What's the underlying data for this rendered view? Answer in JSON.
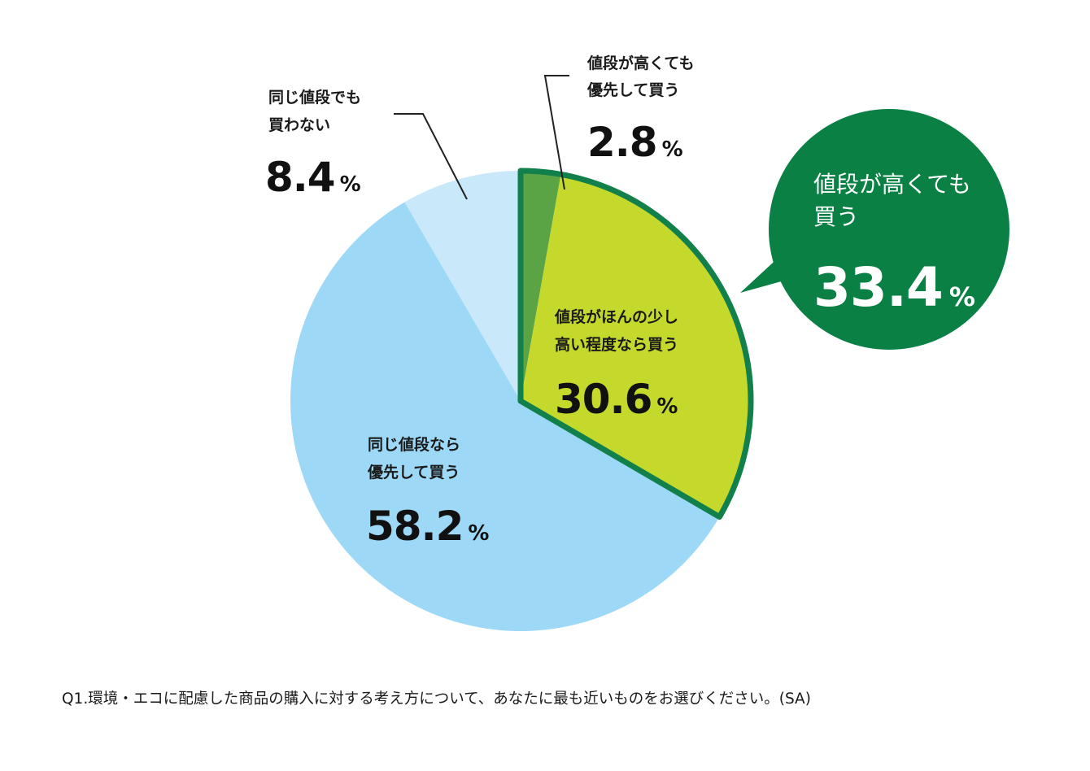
{
  "chart_data": {
    "type": "pie",
    "title": "",
    "question": "Q1.環境・エコに配慮した商品の購入に対する考え方について、あなたに最も近いものをお選びください。(SA)",
    "unit": "%",
    "slices": [
      {
        "label_lines": [
          "値段が高くても",
          "優先して買う"
        ],
        "value": 2.8,
        "value_text": "2.8",
        "color": "#5ba446"
      },
      {
        "label_lines": [
          "値段がほんの少し",
          "高い程度なら買う"
        ],
        "value": 30.6,
        "value_text": "30.6",
        "color": "#c5d92d"
      },
      {
        "label_lines": [
          "同じ値段なら",
          "優先して買う"
        ],
        "value": 58.2,
        "value_text": "58.2",
        "color": "#9dd8f6"
      },
      {
        "label_lines": [
          "同じ値段でも",
          "買わない"
        ],
        "value": 8.4,
        "value_text": "8.4",
        "color": "#c9e8f9"
      }
    ],
    "highlight": {
      "label_lines": [
        "値段が高くても",
        "買う"
      ],
      "value": 33.4,
      "value_text": "33.4",
      "color": "#0a8045",
      "outline_color": "#12804a"
    }
  }
}
